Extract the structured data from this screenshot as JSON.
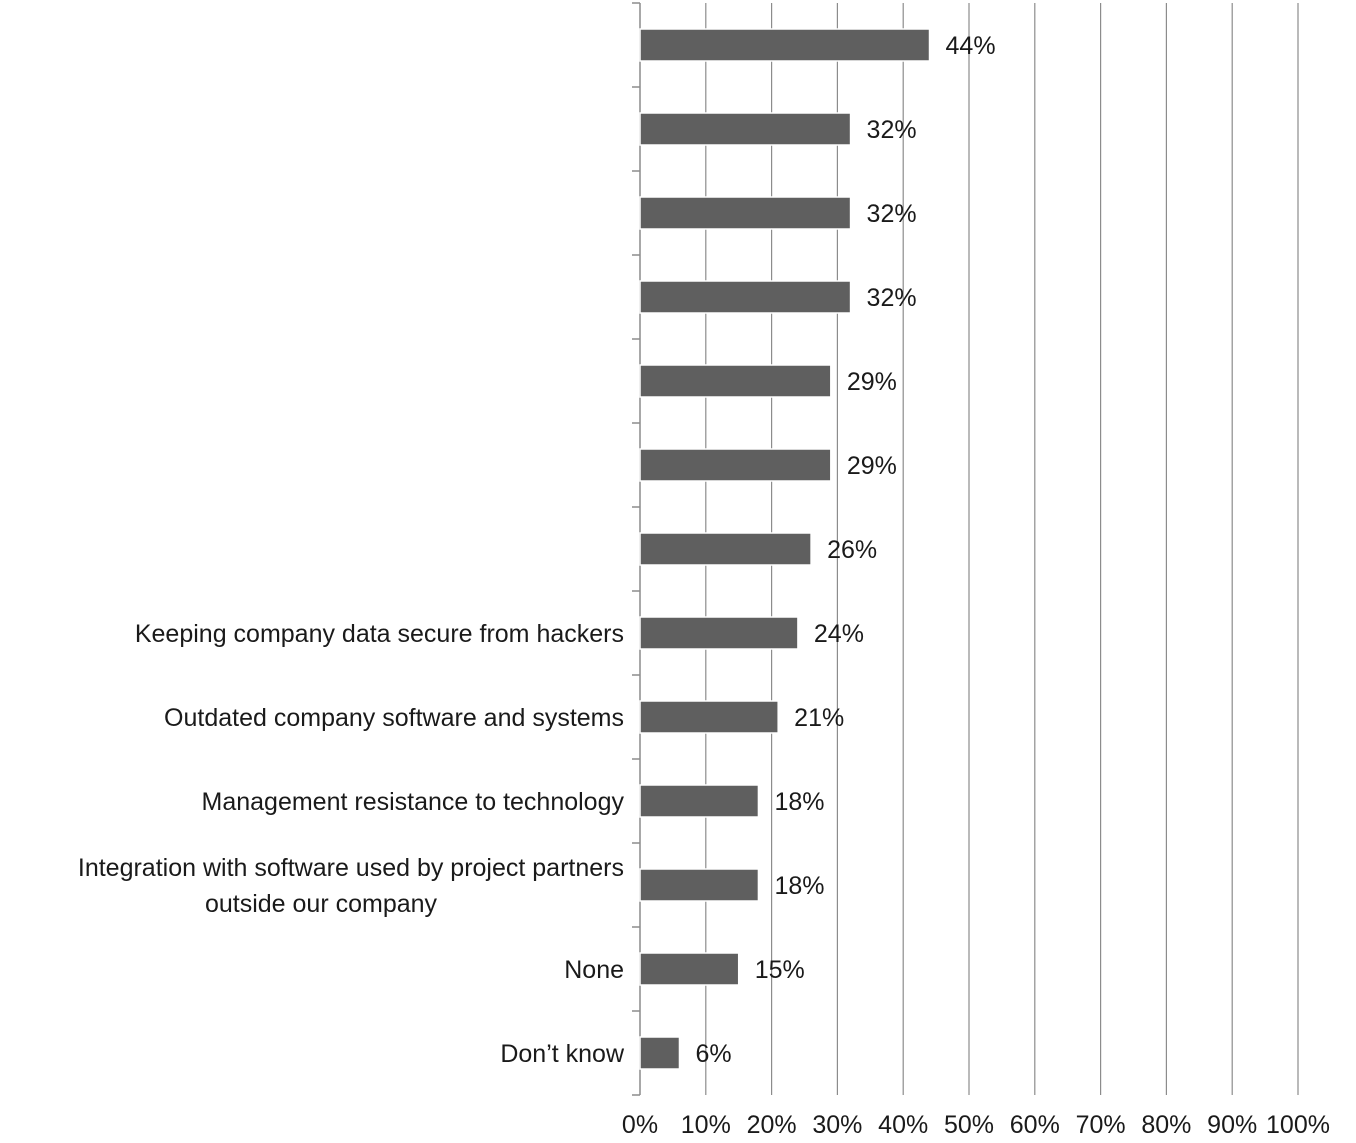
{
  "chart_data": {
    "type": "bar",
    "orientation": "horizontal",
    "title": "",
    "xlabel": "",
    "ylabel": "",
    "xlim": [
      0,
      100
    ],
    "grid": true,
    "legend": "none",
    "bar_color": "#5f5f5f",
    "categories": [
      [
        ""
      ],
      [
        ""
      ],
      [
        ""
      ],
      [
        ""
      ],
      [
        ""
      ],
      [
        ""
      ],
      [
        ""
      ],
      [
        "Keeping company data secure from hackers"
      ],
      [
        "Outdated company software and systems"
      ],
      [
        "Management resistance to technology"
      ],
      [
        "Integration with software used by project partners",
        "outside our company"
      ],
      [
        "None"
      ],
      [
        "Don’t know"
      ]
    ],
    "values": [
      44,
      32,
      32,
      32,
      29,
      29,
      26,
      24,
      21,
      18,
      18,
      15,
      6
    ],
    "value_labels": [
      "44%",
      "32%",
      "32%",
      "32%",
      "29%",
      "29%",
      "26%",
      "24%",
      "21%",
      "18%",
      "18%",
      "15%",
      "6%"
    ],
    "x_ticks": [
      0,
      10,
      20,
      30,
      40,
      50,
      60,
      70,
      80,
      90,
      100
    ],
    "x_tick_labels": [
      "0%",
      "10%",
      "20%",
      "30%",
      "40%",
      "50%",
      "60%",
      "70%",
      "80%",
      "90%",
      "100%"
    ]
  }
}
